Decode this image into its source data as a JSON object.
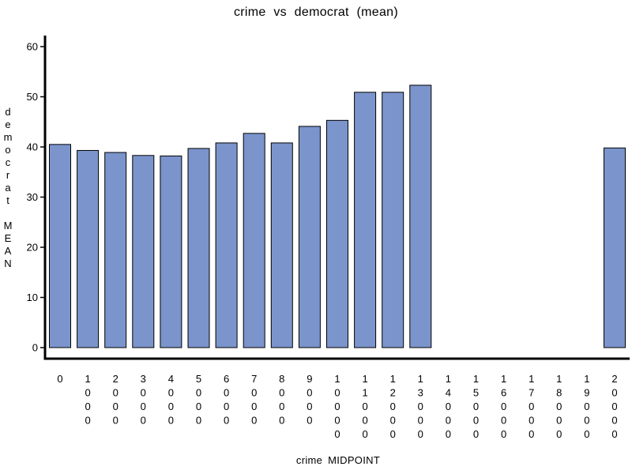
{
  "chart_data": {
    "type": "bar",
    "title": "crime vs democrat (mean)",
    "xlabel": "crime MIDPOINT",
    "ylabel": "democrat MEAN",
    "categories": [
      "0",
      "1000",
      "2000",
      "3000",
      "4000",
      "5000",
      "6000",
      "7000",
      "8000",
      "9000",
      "10000",
      "11000",
      "12000",
      "13000",
      "14000",
      "15000",
      "16000",
      "17000",
      "18000",
      "19000",
      "20000"
    ],
    "values": [
      40.5,
      39.3,
      38.9,
      38.3,
      38.2,
      39.7,
      40.8,
      42.7,
      40.8,
      44.1,
      45.3,
      50.9,
      50.9,
      52.3,
      null,
      null,
      null,
      null,
      null,
      null,
      39.8
    ],
    "yticks": [
      0,
      10,
      20,
      30,
      40,
      50,
      60
    ],
    "ylim": [
      0,
      60
    ],
    "bar_color": "#7b94cc",
    "bar_stroke": "#000000",
    "grid": false
  }
}
